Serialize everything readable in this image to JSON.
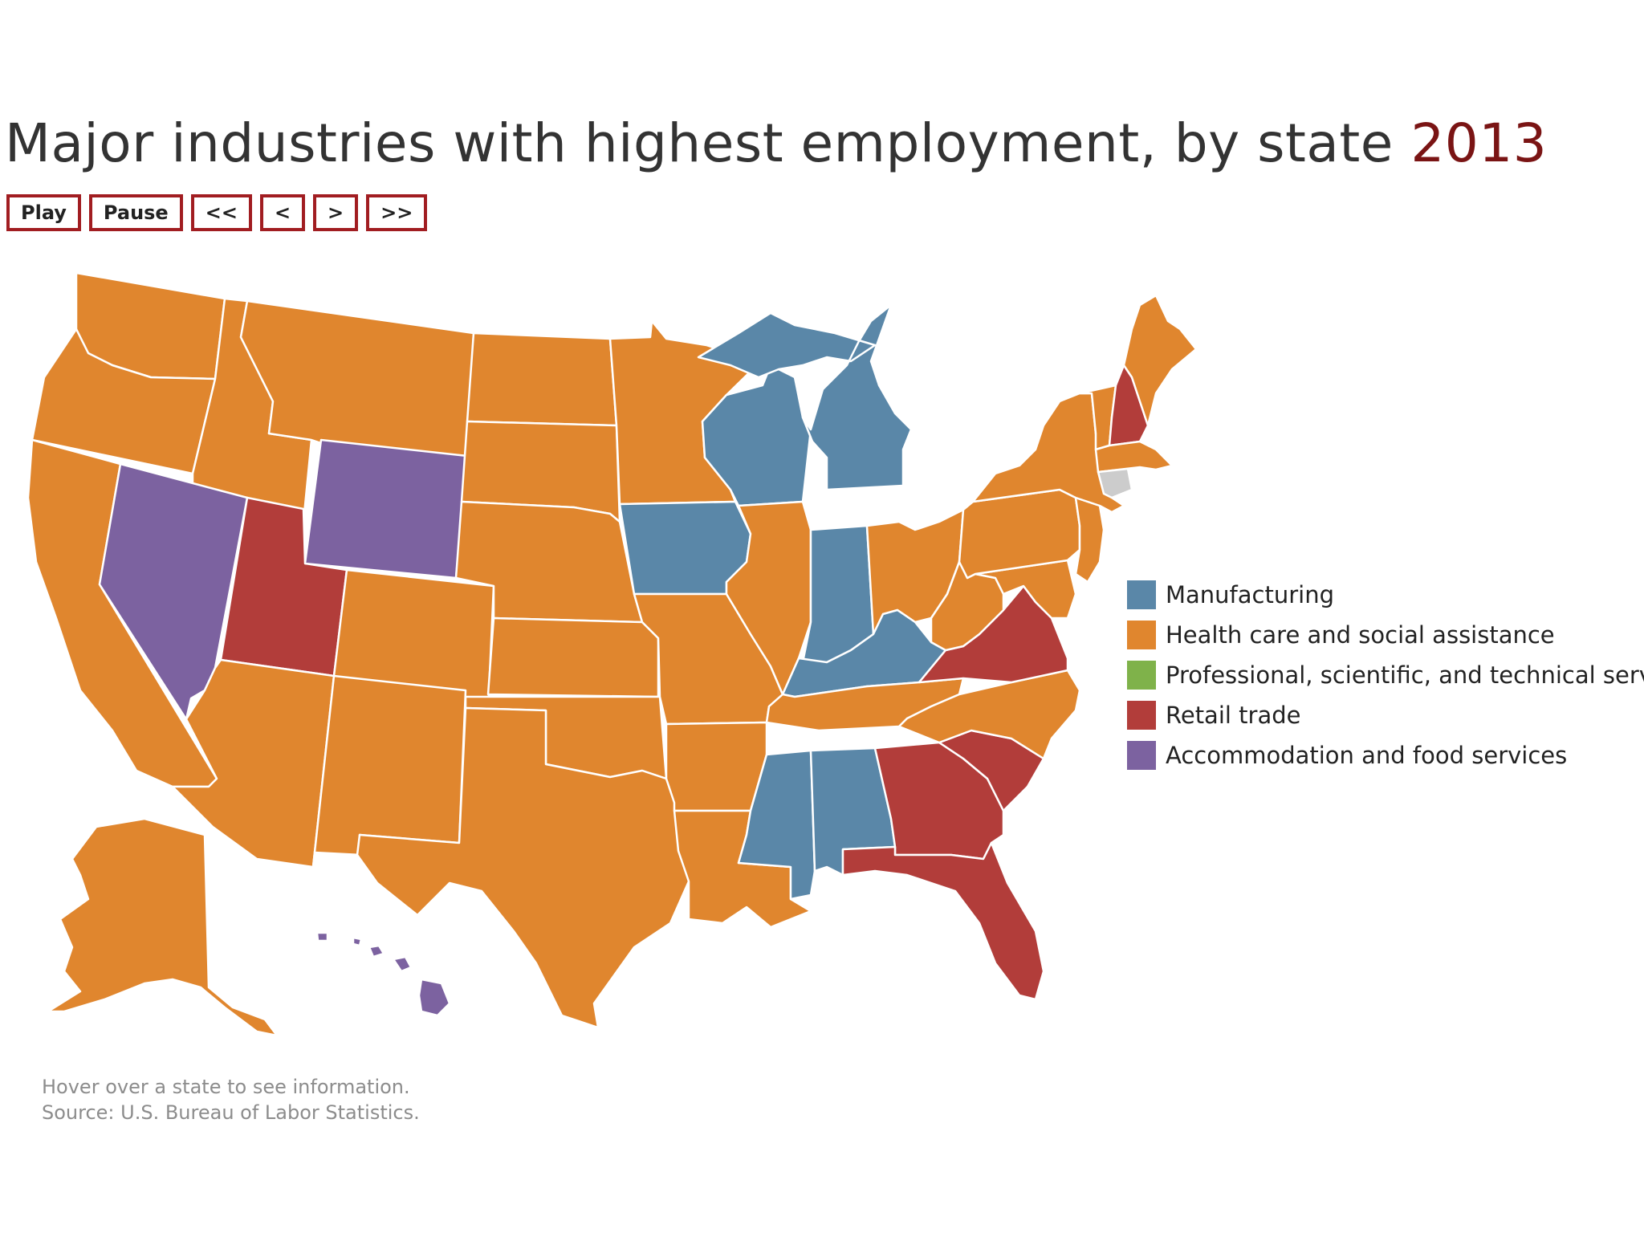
{
  "title": {
    "text": "Major industries with highest employment, by state",
    "year": "2013"
  },
  "controls": {
    "play": "Play",
    "pause": "Pause",
    "first": "<<",
    "prev": "<",
    "next": ">",
    "last": ">>"
  },
  "colors": {
    "manufacturing": "#5a87a8",
    "health": "#e0862e",
    "professional": "#7fb24a",
    "retail": "#b23d3a",
    "accommodation": "#7c62a0"
  },
  "legend": [
    {
      "key": "manufacturing",
      "label": "Manufacturing"
    },
    {
      "key": "health",
      "label": "Health care and social assistance"
    },
    {
      "key": "professional",
      "label": "Professional, scientific, and technical services"
    },
    {
      "key": "retail",
      "label": "Retail trade"
    },
    {
      "key": "accommodation",
      "label": "Accommodation and food services"
    }
  ],
  "states": {
    "WA": "health",
    "OR": "health",
    "CA": "health",
    "ID": "health",
    "NV": "accommodation",
    "MT": "health",
    "WY": "accommodation",
    "UT": "retail",
    "AZ": "health",
    "CO": "health",
    "NM": "health",
    "ND": "health",
    "SD": "health",
    "NE": "health",
    "KS": "health",
    "OK": "health",
    "TX": "health",
    "MN": "health",
    "IA": "manufacturing",
    "MO": "health",
    "AR": "health",
    "LA": "health",
    "WI": "manufacturing",
    "IL": "health",
    "MI": "manufacturing",
    "IN": "manufacturing",
    "OH": "health",
    "KY": "manufacturing",
    "TN": "health",
    "MS": "manufacturing",
    "AL": "manufacturing",
    "GA": "retail",
    "FL": "retail",
    "SC": "retail",
    "NC": "health",
    "VA": "retail",
    "WV": "health",
    "PA": "health",
    "NY": "health",
    "ME": "health",
    "NH": "retail",
    "VT": "health",
    "MA": "health",
    "NJ": "health",
    "MD": "health",
    "AK": "health",
    "HI": "accommodation"
  },
  "notes": {
    "hover": "Hover over a state to see information.",
    "source": "Source: U.S. Bureau of Labor Statistics."
  }
}
